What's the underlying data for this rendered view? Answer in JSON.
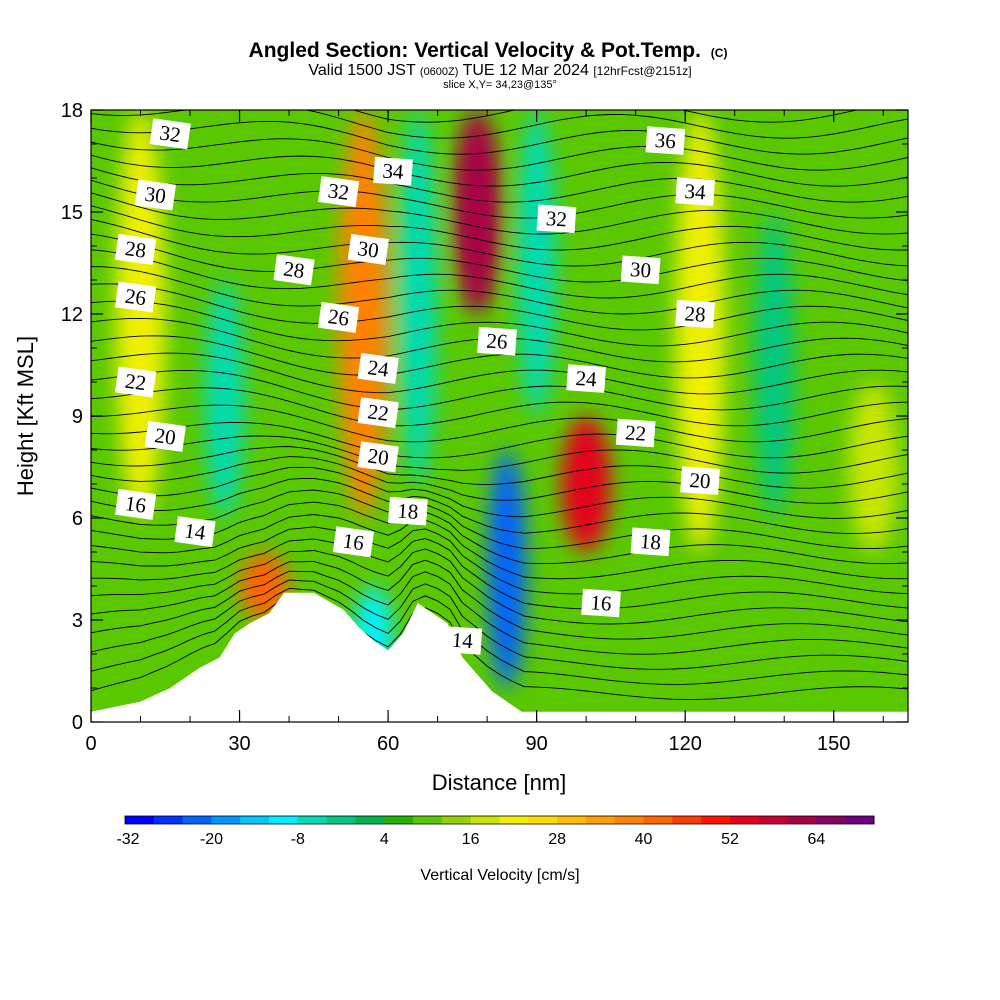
{
  "header": {
    "title": "Angled Section: Vertical Velocity & Pot.Temp.",
    "title_tag": "(C)",
    "valid_prefix": "Valid 1500 JST",
    "utc": "(0600Z)",
    "valid_date": "TUE 12 Mar 2024",
    "fcst_tag": "[12hrFcst@2151z]",
    "slice": "slice X,Y= 34,23@135°"
  },
  "chart_data": {
    "type": "heatmap",
    "title": "Angled Section: Vertical Velocity & Pot.Temp.",
    "xlabel": "Distance [nm]",
    "ylabel": "Height [Kft MSL]",
    "xlim": [
      0,
      165
    ],
    "ylim": [
      0,
      18
    ],
    "x_ticks": [
      "0",
      "30",
      "60",
      "90",
      "120",
      "150"
    ],
    "y_ticks": [
      "0",
      "3",
      "6",
      "9",
      "12",
      "15",
      "18"
    ],
    "colorbar": {
      "label": "Vertical Velocity [cm/s]",
      "tick_labels": [
        "-32",
        "-20",
        "-8",
        "4",
        "16",
        "28",
        "40",
        "52",
        "64"
      ],
      "levels": [
        -32,
        -28,
        -24,
        -20,
        -16,
        -12,
        -8,
        -4,
        0,
        4,
        8,
        12,
        16,
        20,
        24,
        28,
        32,
        36,
        40,
        44,
        48,
        52,
        56,
        60,
        64,
        68
      ],
      "colors": [
        "#0000ff",
        "#0032ff",
        "#0064ff",
        "#0096ff",
        "#00c8ff",
        "#00f0ff",
        "#00dcb4",
        "#00c882",
        "#00b450",
        "#22b400",
        "#5ac800",
        "#96d200",
        "#c8e600",
        "#f0f000",
        "#ffdc00",
        "#ffbe00",
        "#ffa000",
        "#ff8200",
        "#ff6400",
        "#ff3c00",
        "#ff1400",
        "#e6001e",
        "#c80032",
        "#aa0046",
        "#8c0064",
        "#6e0082"
      ]
    },
    "w_field_features": [
      {
        "kind": "updraft",
        "x": 78,
        "y_range": [
          12,
          18
        ],
        "peak": 60
      },
      {
        "kind": "updraft",
        "x": 55,
        "y_range": [
          6,
          18
        ],
        "peak": 36
      },
      {
        "kind": "updraft",
        "x": 100,
        "y_range": [
          5,
          9
        ],
        "peak": 52
      },
      {
        "kind": "updraft",
        "x": 35,
        "y_range": [
          3,
          5
        ],
        "peak": 40
      },
      {
        "kind": "updraft",
        "x": 10,
        "y_range": [
          6,
          18
        ],
        "peak": 20
      },
      {
        "kind": "updraft",
        "x": 123,
        "y_range": [
          5,
          18
        ],
        "peak": 20
      },
      {
        "kind": "updraft",
        "x": 158,
        "y_range": [
          5,
          10
        ],
        "peak": 18
      },
      {
        "kind": "downdraft",
        "x": 84,
        "y_range": [
          1,
          8
        ],
        "peak": -22
      },
      {
        "kind": "downdraft",
        "x": 66,
        "y_range": [
          7,
          18
        ],
        "peak": -8
      },
      {
        "kind": "downdraft",
        "x": 90,
        "y_range": [
          9,
          18
        ],
        "peak": -6
      },
      {
        "kind": "downdraft",
        "x": 27,
        "y_range": [
          6,
          13
        ],
        "peak": -6
      },
      {
        "kind": "downdraft",
        "x": 57,
        "y_range": [
          1,
          4
        ],
        "peak": -10
      },
      {
        "kind": "downdraft",
        "x": 138,
        "y_range": [
          6,
          15
        ],
        "peak": -4
      }
    ],
    "terrain_kft": {
      "x": [
        0,
        10,
        13,
        16,
        19,
        22,
        26,
        29,
        32,
        36,
        39,
        42,
        45,
        51,
        54,
        57,
        60,
        63,
        66,
        72,
        75,
        78,
        81,
        84,
        86,
        87,
        165
      ],
      "y": [
        0.3,
        0.6,
        0.8,
        1.0,
        1.3,
        1.6,
        1.9,
        2.6,
        2.9,
        3.2,
        3.8,
        3.8,
        3.8,
        3.3,
        2.8,
        2.4,
        2.1,
        2.6,
        3.5,
        2.9,
        1.9,
        1.4,
        0.9,
        0.6,
        0.4,
        0.3,
        0.3
      ]
    },
    "theta_contours": {
      "levels_c": [
        14,
        16,
        18,
        20,
        22,
        24,
        26,
        28,
        30,
        32,
        34,
        36
      ],
      "labels": [
        {
          "text": "32",
          "x": 16,
          "y": 17.3
        },
        {
          "text": "30",
          "x": 13,
          "y": 15.5
        },
        {
          "text": "28",
          "x": 9,
          "y": 13.9
        },
        {
          "text": "26",
          "x": 9,
          "y": 12.5
        },
        {
          "text": "22",
          "x": 9,
          "y": 10.0
        },
        {
          "text": "20",
          "x": 15,
          "y": 8.4
        },
        {
          "text": "16",
          "x": 9,
          "y": 6.4
        },
        {
          "text": "14",
          "x": 21,
          "y": 5.6
        },
        {
          "text": "28",
          "x": 41,
          "y": 13.3
        },
        {
          "text": "32",
          "x": 50,
          "y": 15.6
        },
        {
          "text": "30",
          "x": 56,
          "y": 13.9
        },
        {
          "text": "26",
          "x": 50,
          "y": 11.9
        },
        {
          "text": "34",
          "x": 61,
          "y": 16.2
        },
        {
          "text": "24",
          "x": 58,
          "y": 10.4
        },
        {
          "text": "22",
          "x": 58,
          "y": 9.1
        },
        {
          "text": "20",
          "x": 58,
          "y": 7.8
        },
        {
          "text": "18",
          "x": 64,
          "y": 6.2
        },
        {
          "text": "16",
          "x": 53,
          "y": 5.3
        },
        {
          "text": "14",
          "x": 75,
          "y": 2.4
        },
        {
          "text": "36",
          "x": 116,
          "y": 17.1
        },
        {
          "text": "34",
          "x": 122,
          "y": 15.6
        },
        {
          "text": "32",
          "x": 94,
          "y": 14.8
        },
        {
          "text": "30",
          "x": 111,
          "y": 13.3
        },
        {
          "text": "28",
          "x": 122,
          "y": 12.0
        },
        {
          "text": "26",
          "x": 82,
          "y": 11.2
        },
        {
          "text": "24",
          "x": 100,
          "y": 10.1
        },
        {
          "text": "22",
          "x": 110,
          "y": 8.5
        },
        {
          "text": "20",
          "x": 123,
          "y": 7.1
        },
        {
          "text": "18",
          "x": 113,
          "y": 5.3
        },
        {
          "text": "16",
          "x": 103,
          "y": 3.5
        }
      ]
    }
  }
}
